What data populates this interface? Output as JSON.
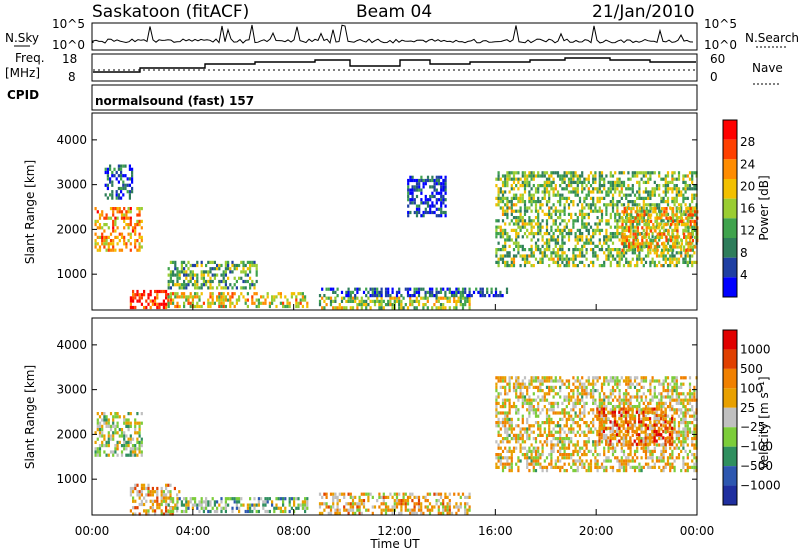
{
  "header": {
    "station": "Saskatoon (fitACF)",
    "beam": "Beam 04",
    "date": "21/Jan/2010",
    "cpid_label": "CPID",
    "cpid_text": "normalsound (fast) 157"
  },
  "nsky_panel": {
    "left_label": "N.Sky",
    "right_label": "N.Search",
    "left_ticks": [
      "10^5",
      "10^0"
    ],
    "right_ticks": [
      "10^5",
      "10^0"
    ]
  },
  "freq_panel": {
    "left_label_1": "Freq.",
    "left_label_2": "[MHz]",
    "right_label": "Nave",
    "left_ticks": [
      "18",
      "8"
    ],
    "right_ticks": [
      "60",
      "0"
    ]
  },
  "colors": {
    "power": [
      "#0000ff",
      "#1f3fa3",
      "#2e7d5b",
      "#3fa34d",
      "#9acd32",
      "#f2c000",
      "#ff8c00",
      "#ff4000",
      "#ff0000"
    ],
    "velocity": [
      "#1f2f9f",
      "#2d57b0",
      "#2f8f5f",
      "#7ccd3a",
      "#c0c0c0",
      "#e8a000",
      "#f08000",
      "#e04000",
      "#e00000"
    ]
  },
  "chart_data": [
    {
      "type": "heatmap",
      "panel": "power",
      "ylabel": "Slant Range [km]",
      "ylim": [
        200,
        4600
      ],
      "yticks": [
        "1000",
        "2000",
        "3000",
        "4000"
      ],
      "x_ticks": [
        "00:00",
        "04:00",
        "08:00",
        "12:00",
        "16:00",
        "20:00",
        "00:00"
      ],
      "xlabel": "Time UT",
      "colorbar_label": "Power [dB]",
      "colorbar_ticks": [
        "4",
        "8",
        "12",
        "16",
        "20",
        "24",
        "28"
      ],
      "regions": [
        {
          "t0": 0.1,
          "t1": 2.0,
          "r0": 1500,
          "r1": 2500,
          "level": 0.7
        },
        {
          "t0": 0.5,
          "t1": 1.6,
          "r0": 2700,
          "r1": 3450,
          "level": 0.2
        },
        {
          "t0": 1.5,
          "t1": 3.0,
          "r0": 250,
          "r1": 650,
          "level": 0.9
        },
        {
          "t0": 3.0,
          "t1": 8.5,
          "r0": 250,
          "r1": 600,
          "level": 0.6
        },
        {
          "t0": 3.0,
          "t1": 6.5,
          "r0": 700,
          "r1": 1300,
          "level": 0.4
        },
        {
          "t0": 9.0,
          "t1": 15.0,
          "r0": 250,
          "r1": 500,
          "level": 0.5
        },
        {
          "t0": 9.0,
          "t1": 16.5,
          "r0": 500,
          "r1": 700,
          "level": 0.2
        },
        {
          "t0": 16.0,
          "t1": 24.0,
          "r0": 1200,
          "r1": 3300,
          "level": 0.45
        },
        {
          "t0": 21.0,
          "t1": 24.0,
          "r0": 1500,
          "r1": 2500,
          "level": 0.65
        },
        {
          "t0": 12.5,
          "t1": 14.0,
          "r0": 2300,
          "r1": 3200,
          "level": 0.15
        }
      ]
    },
    {
      "type": "heatmap",
      "panel": "velocity",
      "ylabel": "Slant Range [km]",
      "ylim": [
        200,
        4600
      ],
      "yticks": [
        "1000",
        "2000",
        "3000",
        "4000"
      ],
      "x_ticks": [
        "00:00",
        "04:00",
        "08:00",
        "12:00",
        "16:00",
        "20:00",
        "00:00"
      ],
      "xlabel": "Time UT",
      "colorbar_label": "Velocity [m s⁻¹]",
      "colorbar_ticks": [
        "1000",
        "500",
        "100",
        "25",
        "−25",
        "−100",
        "−500",
        "−1000"
      ],
      "regions": [
        {
          "t0": 0.1,
          "t1": 2.0,
          "r0": 1500,
          "r1": 2500,
          "level": 0.45
        },
        {
          "t0": 1.5,
          "t1": 3.5,
          "r0": 250,
          "r1": 900,
          "level": 0.65
        },
        {
          "t0": 3.0,
          "t1": 8.5,
          "r0": 250,
          "r1": 600,
          "level": 0.4
        },
        {
          "t0": 9.0,
          "t1": 15.0,
          "r0": 250,
          "r1": 700,
          "level": 0.6
        },
        {
          "t0": 16.0,
          "t1": 24.0,
          "r0": 1200,
          "r1": 3300,
          "level": 0.55
        },
        {
          "t0": 20.0,
          "t1": 23.0,
          "r0": 1800,
          "r1": 2600,
          "level": 0.75
        }
      ]
    }
  ]
}
